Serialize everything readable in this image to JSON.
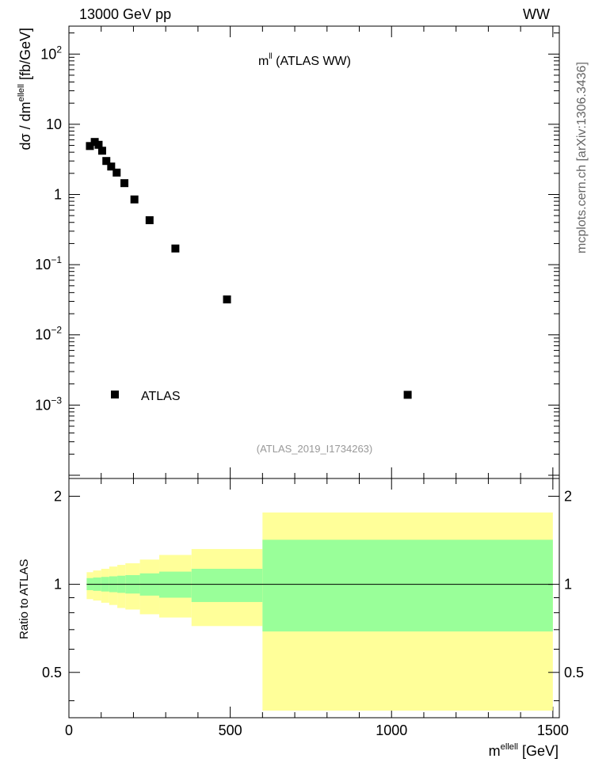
{
  "header": {
    "left_label": "13000 GeV pp",
    "right_label": "WW"
  },
  "side_note": "mcplots.cern.ch [arXiv:1306.3436]",
  "chart_data": [
    {
      "type": "scatter",
      "title": "m",
      "title_sup": "ll",
      "title_rest": " (ATLAS WW)",
      "ylabel": "dσ / dm",
      "ylabel_sup": "ellell",
      "ylabel_rest": " [fb/GeV]",
      "yscale": "log",
      "ylim": [
        9e-05,
        250
      ],
      "xlim": [
        0,
        1520
      ],
      "y_ticks": [
        {
          "v": 0.001,
          "base": "10",
          "exp": "−3"
        },
        {
          "v": 0.01,
          "base": "10",
          "exp": "−2"
        },
        {
          "v": 0.1,
          "base": "10",
          "exp": "−1"
        },
        {
          "v": 1,
          "base": "1",
          "exp": ""
        },
        {
          "v": 10,
          "base": "10",
          "exp": ""
        },
        {
          "v": 100,
          "base": "10",
          "exp": "2"
        }
      ],
      "legend": [
        {
          "name": "ATLAS",
          "marker": "square",
          "color": "#000000"
        }
      ],
      "watermark": "(ATLAS_2019_I1734263)",
      "series": [
        {
          "name": "ATLAS",
          "x": [
            65,
            80,
            92,
            103,
            116,
            131,
            148,
            172,
            203,
            250,
            330,
            490,
            1050
          ],
          "y": [
            4.9,
            5.6,
            5.1,
            4.2,
            3.0,
            2.5,
            2.05,
            1.45,
            0.85,
            0.43,
            0.17,
            0.032,
            0.0014
          ]
        }
      ]
    },
    {
      "type": "area",
      "ylabel": "Ratio to ATLAS",
      "xlabel": "m",
      "xlabel_sup": "ellell",
      "xlabel_rest": " [GeV]",
      "xlim": [
        0,
        1520
      ],
      "ylim": [
        0.35,
        2.3
      ],
      "x_ticks": [
        "0",
        "500",
        "1000",
        "1500"
      ],
      "y_ticks": [
        "0.5",
        "1",
        "2"
      ],
      "reference_line": 1,
      "bins": [
        {
          "lo": 55,
          "hi": 75,
          "inner": [
            0.955,
            1.05
          ],
          "outer": [
            0.89,
            1.1
          ]
        },
        {
          "lo": 75,
          "hi": 100,
          "inner": [
            0.95,
            1.055
          ],
          "outer": [
            0.88,
            1.115
          ]
        },
        {
          "lo": 100,
          "hi": 125,
          "inner": [
            0.945,
            1.06
          ],
          "outer": [
            0.865,
            1.13
          ]
        },
        {
          "lo": 125,
          "hi": 150,
          "inner": [
            0.94,
            1.065
          ],
          "outer": [
            0.85,
            1.15
          ]
        },
        {
          "lo": 150,
          "hi": 175,
          "inner": [
            0.935,
            1.07
          ],
          "outer": [
            0.83,
            1.165
          ]
        },
        {
          "lo": 175,
          "hi": 220,
          "inner": [
            0.93,
            1.075
          ],
          "outer": [
            0.82,
            1.18
          ]
        },
        {
          "lo": 220,
          "hi": 280,
          "inner": [
            0.915,
            1.09
          ],
          "outer": [
            0.79,
            1.215
          ]
        },
        {
          "lo": 280,
          "hi": 380,
          "inner": [
            0.9,
            1.105
          ],
          "outer": [
            0.77,
            1.26
          ]
        },
        {
          "lo": 380,
          "hi": 600,
          "inner": [
            0.87,
            1.13
          ],
          "outer": [
            0.72,
            1.32
          ]
        },
        {
          "lo": 600,
          "hi": 1500,
          "inner": [
            0.69,
            1.42
          ],
          "outer": [
            0.37,
            1.76
          ]
        }
      ],
      "colors": {
        "inner": "#99ff99",
        "outer": "#ffff99",
        "line": "#000000"
      }
    }
  ]
}
